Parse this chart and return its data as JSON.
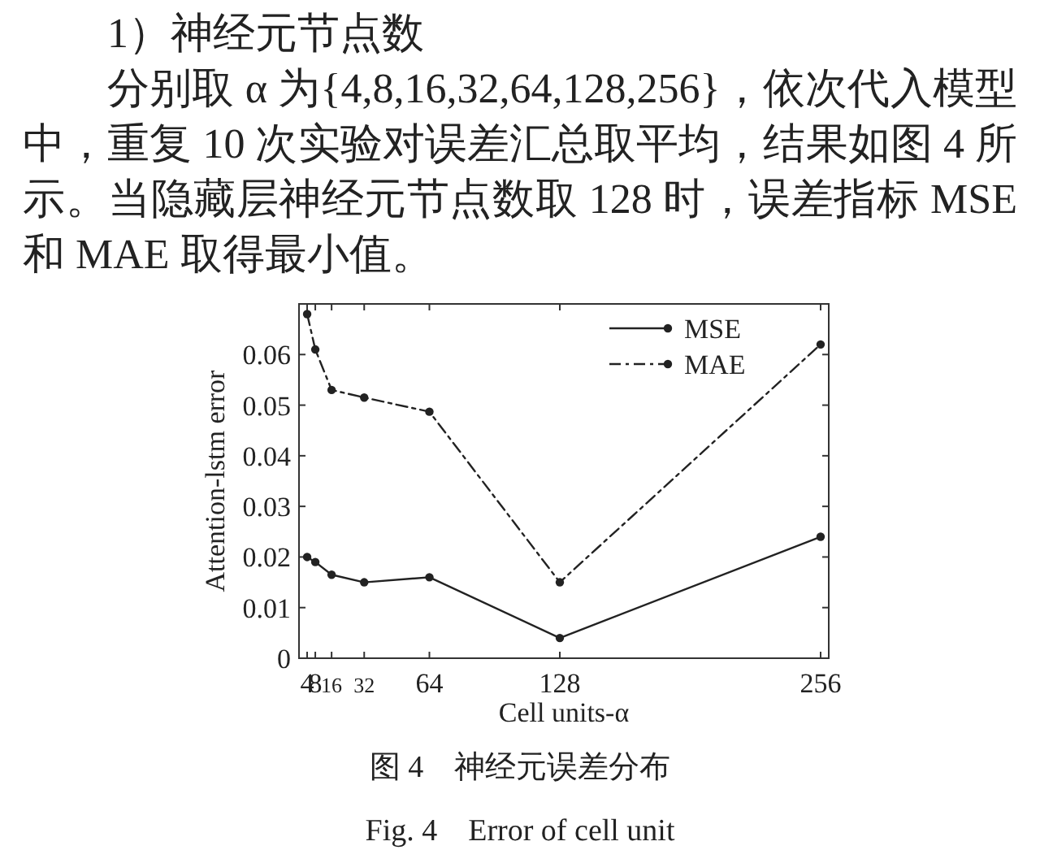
{
  "chart_data": {
    "type": "line",
    "title": "图 4　神经元误差分布",
    "subtitle": "Fig. 4　Error of cell unit",
    "annotations": [
      "1）神经元节点数",
      "分别取 α 为{4,8,16,32,64,128,256}，依次代入模型中，重复 10 次实验对误差汇总取平均，结果如图 4 所示。当隐藏层神经元节点数取 128 时，误差指标 MSE 和 MAE 取得最小值。"
    ],
    "xlabel": "Cell units-α",
    "ylabel": "Attention-lstm error",
    "x": [
      4,
      8,
      16,
      32,
      64,
      128,
      256
    ],
    "series": [
      {
        "name": "MSE",
        "color": "#222222",
        "line_style": "solid",
        "values": [
          0.02,
          0.019,
          0.0165,
          0.015,
          0.016,
          0.004,
          0.024
        ]
      },
      {
        "name": "MAE",
        "color": "#222222",
        "line_style": "dashdot",
        "values": [
          0.068,
          0.061,
          0.053,
          0.0515,
          0.0487,
          0.015,
          0.062
        ]
      }
    ],
    "xlim": [
      0,
      260
    ],
    "xticks": [
      4,
      8,
      16,
      32,
      64,
      128,
      256
    ],
    "ylim": [
      0,
      0.07
    ],
    "yticks": [
      0,
      0.01,
      0.02,
      0.03,
      0.04,
      0.05,
      0.06
    ],
    "marker": "circle",
    "legend": "top right",
    "grid": false
  }
}
